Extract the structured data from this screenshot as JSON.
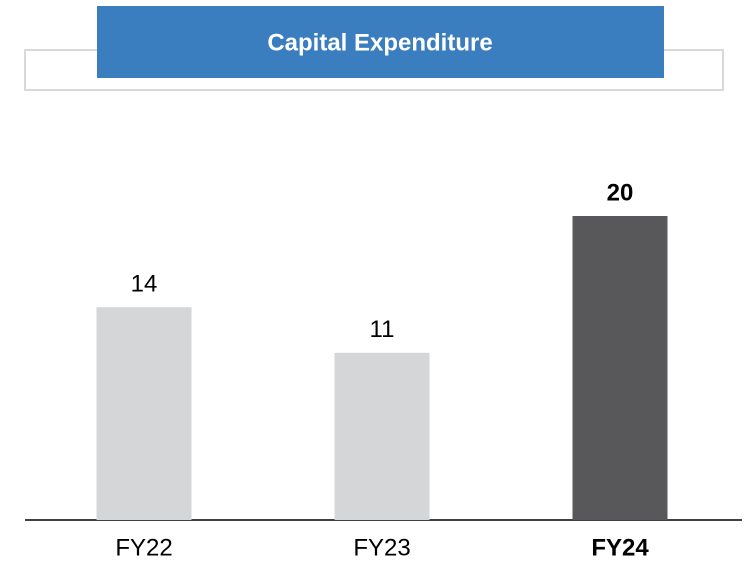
{
  "chart_data": {
    "type": "bar",
    "title": "Capital Expenditure",
    "categories": [
      "FY22",
      "FY23",
      "FY24"
    ],
    "values": [
      14,
      11,
      20
    ],
    "colors": [
      "#d5d6d8",
      "#d5d6d8",
      "#58585a"
    ],
    "bold": [
      false,
      false,
      true
    ],
    "ylim": [
      0,
      20
    ]
  }
}
